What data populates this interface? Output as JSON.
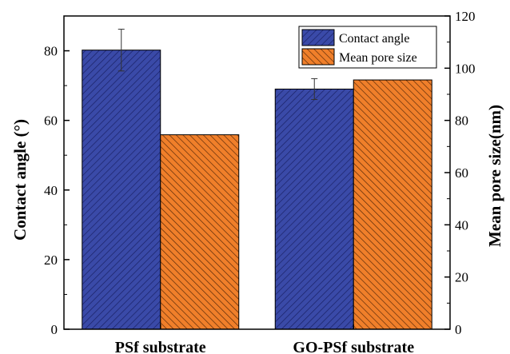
{
  "chart_data": {
    "type": "bar",
    "categories": [
      "PSf substrate",
      "GO-PSf substrate"
    ],
    "series": [
      {
        "name": "Contact angle",
        "axis": "left",
        "values": [
          80.2,
          69.0
        ],
        "error": [
          6.0,
          3.0
        ],
        "color": "#3a4aa8",
        "hatch": "///"
      },
      {
        "name": "Mean pore size",
        "axis": "right",
        "values": [
          74.5,
          95.5
        ],
        "color": "#f07f2a",
        "hatch": "\\\\\\"
      }
    ],
    "ylabel": "Contact angle  (°)",
    "ylabel_right": "Mean pore size(nm)",
    "ylim": [
      0,
      90
    ],
    "ylim_right": [
      0,
      120
    ],
    "yticks": [
      "0",
      "20",
      "40",
      "60",
      "80"
    ],
    "yticks_right": [
      "0",
      "20",
      "40",
      "60",
      "80",
      "100",
      "120"
    ],
    "legend": "top-right",
    "grid": false
  }
}
